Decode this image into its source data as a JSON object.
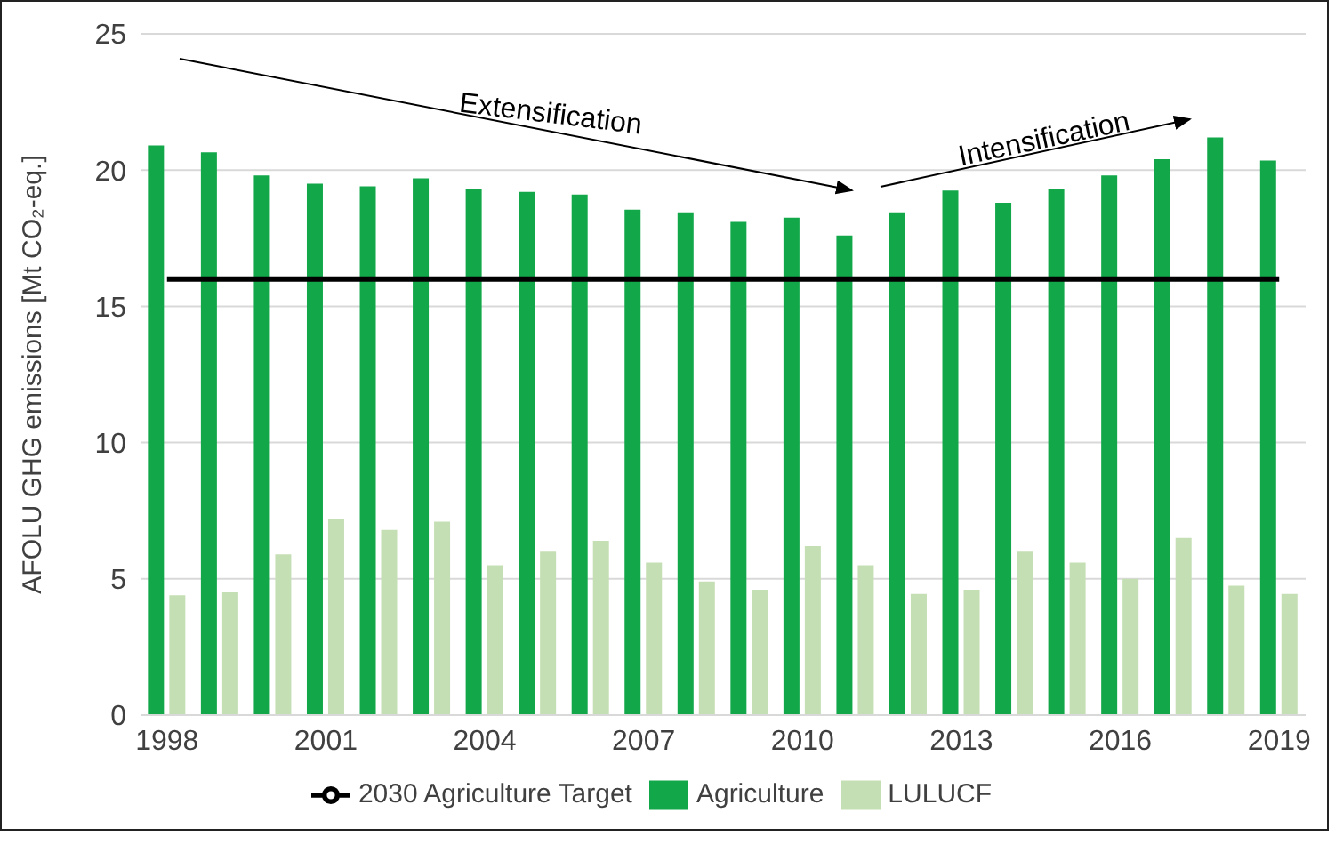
{
  "chart_data": {
    "type": "bar",
    "ylabel": "AFOLU GHG emissions [Mt CO₂-eq.]",
    "categories": [
      "1998",
      null,
      null,
      "2001",
      null,
      null,
      "2004",
      null,
      null,
      "2007",
      null,
      null,
      "2010",
      null,
      null,
      "2013",
      null,
      null,
      "2016",
      null,
      null,
      "2019"
    ],
    "series": [
      {
        "name": "Agriculture",
        "color": "#12a84a",
        "values": [
          20.9,
          20.65,
          19.8,
          19.5,
          19.4,
          19.7,
          19.3,
          19.2,
          19.1,
          18.55,
          18.45,
          18.1,
          18.25,
          17.6,
          18.45,
          19.25,
          18.8,
          19.3,
          19.8,
          20.4,
          21.2,
          20.35
        ]
      },
      {
        "name": "LULUCF",
        "color": "#c5dfb4",
        "values": [
          4.4,
          4.5,
          5.9,
          7.2,
          6.8,
          7.1,
          5.5,
          6.0,
          6.4,
          5.6,
          4.9,
          4.6,
          6.2,
          5.5,
          4.45,
          4.6,
          6.0,
          5.6,
          5.0,
          6.5,
          4.75,
          4.45
        ]
      },
      {
        "name": "2030 Agriculture Target",
        "type": "line",
        "color": "#000000",
        "values": [
          16,
          16,
          16,
          16,
          16,
          16,
          16,
          16,
          16,
          16,
          16,
          16,
          16,
          16,
          16,
          16,
          16,
          16,
          16,
          16,
          16,
          16
        ]
      }
    ],
    "ylim": [
      0,
      25
    ],
    "yticks": [
      0,
      5,
      10,
      15,
      20,
      25
    ],
    "grid": "y",
    "legend": "bottom",
    "marker": "none",
    "annotations": [
      "Extensification",
      "Intensification"
    ]
  }
}
